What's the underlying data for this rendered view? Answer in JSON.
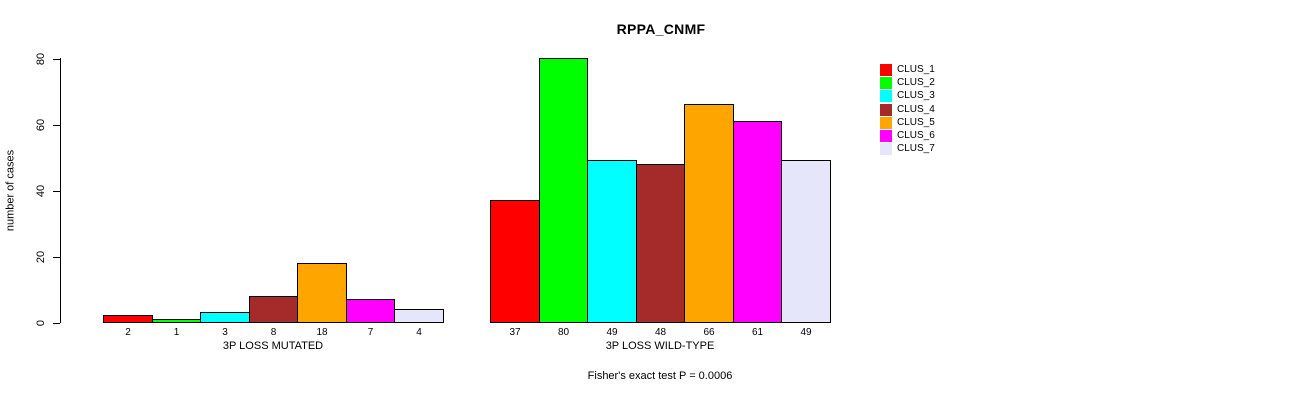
{
  "chart_data": {
    "type": "bar",
    "title": "RPPA_CNMF",
    "xlabel": "",
    "ylabel": "number of cases",
    "ylim": [
      0,
      80
    ],
    "yticks": [
      0,
      20,
      40,
      60,
      80
    ],
    "grid": false,
    "legend_position": "right",
    "series": [
      {
        "name": "CLUS_1",
        "color": "#FF0000"
      },
      {
        "name": "CLUS_2",
        "color": "#00FF00"
      },
      {
        "name": "CLUS_3",
        "color": "#00FFFF"
      },
      {
        "name": "CLUS_4",
        "color": "#A52A2A"
      },
      {
        "name": "CLUS_5",
        "color": "#FFA500"
      },
      {
        "name": "CLUS_6",
        "color": "#FF00FF"
      },
      {
        "name": "CLUS_7",
        "color": "#E6E6FA"
      }
    ],
    "groups": [
      {
        "label": "3P LOSS MUTATED",
        "values": [
          2,
          1,
          3,
          8,
          18,
          7,
          4
        ]
      },
      {
        "label": "3P LOSS WILD-TYPE",
        "values": [
          37,
          80,
          49,
          48,
          66,
          61,
          49
        ]
      }
    ],
    "annotation": "Fisher's exact test P = 0.0006"
  }
}
